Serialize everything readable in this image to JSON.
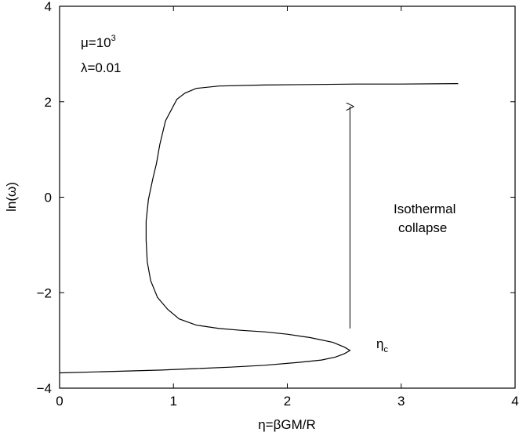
{
  "chart_data": {
    "type": "line",
    "title": "",
    "xlabel": "η=βGM/R",
    "ylabel": "ln(ω)",
    "xlim": [
      0,
      4
    ],
    "ylim": [
      -4,
      4
    ],
    "xticks": [
      0,
      1,
      2,
      3,
      4
    ],
    "yticks": [
      -4,
      -2,
      0,
      2,
      4
    ],
    "xtick_labels": [
      "0",
      "1",
      "2",
      "3",
      "4"
    ],
    "ytick_labels": [
      "−4",
      "−2",
      "0",
      "2",
      "4"
    ],
    "grid": false,
    "legend": "none",
    "series": [
      {
        "color": "#000000",
        "points": [
          [
            0.0,
            -3.68
          ],
          [
            0.3,
            -3.66
          ],
          [
            0.6,
            -3.64
          ],
          [
            0.9,
            -3.62
          ],
          [
            1.2,
            -3.59
          ],
          [
            1.5,
            -3.56
          ],
          [
            1.8,
            -3.52
          ],
          [
            2.1,
            -3.46
          ],
          [
            2.3,
            -3.41
          ],
          [
            2.42,
            -3.35
          ],
          [
            2.5,
            -3.28
          ],
          [
            2.55,
            -3.21
          ],
          [
            2.5,
            -3.14
          ],
          [
            2.4,
            -3.04
          ],
          [
            2.2,
            -2.94
          ],
          [
            2.0,
            -2.87
          ],
          [
            1.8,
            -2.82
          ],
          [
            1.6,
            -2.79
          ],
          [
            1.4,
            -2.75
          ],
          [
            1.2,
            -2.68
          ],
          [
            1.05,
            -2.55
          ],
          [
            0.95,
            -2.35
          ],
          [
            0.86,
            -2.1
          ],
          [
            0.8,
            -1.75
          ],
          [
            0.77,
            -1.35
          ],
          [
            0.76,
            -0.9
          ],
          [
            0.76,
            -0.5
          ],
          [
            0.78,
            -0.05
          ],
          [
            0.82,
            0.4
          ],
          [
            0.85,
            0.7
          ],
          [
            0.88,
            1.1
          ],
          [
            0.93,
            1.6
          ],
          [
            1.03,
            2.05
          ],
          [
            1.1,
            2.18
          ],
          [
            1.2,
            2.28
          ],
          [
            1.4,
            2.33
          ],
          [
            1.8,
            2.35
          ],
          [
            2.2,
            2.36
          ],
          [
            2.6,
            2.37
          ],
          [
            3.0,
            2.37
          ],
          [
            3.5,
            2.38
          ]
        ]
      }
    ],
    "arrow": {
      "x": 2.55,
      "from_y": -2.75,
      "to_y": 1.9
    },
    "params": {
      "mu_base": "μ=10",
      "mu_exp": "3",
      "lambda": "λ=0.01"
    },
    "annotation": {
      "line1": "Isothermal",
      "line2": "collapse"
    },
    "eta_c": {
      "main": "η",
      "sub": "c"
    }
  }
}
